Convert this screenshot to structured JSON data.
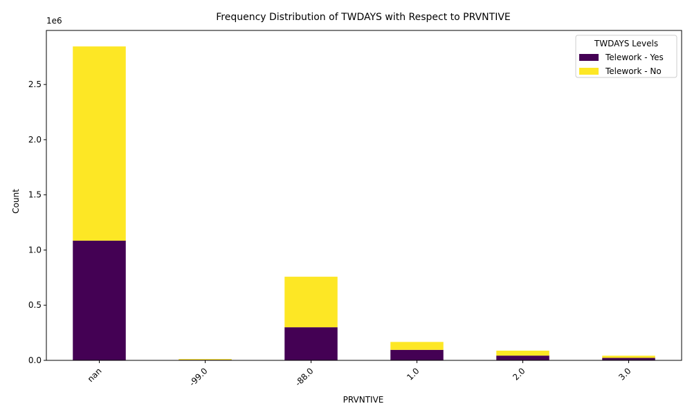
{
  "chart_data": {
    "type": "bar",
    "stacked": true,
    "title": "Frequency Distribution of TWDAYS with Respect to PRVNTIVE",
    "xlabel": "PRVNTIVE",
    "ylabel": "Count",
    "offset_label": "1e6",
    "categories": [
      "nan",
      "-99.0",
      "-88.0",
      "1.0",
      "2.0",
      "3.0"
    ],
    "series": [
      {
        "name": "Telework - Yes",
        "color": "#440154",
        "values": [
          1085000,
          5000,
          300000,
          95000,
          43000,
          22000
        ]
      },
      {
        "name": "Telework - No",
        "color": "#fde725",
        "values": [
          1760000,
          7000,
          458000,
          72000,
          45000,
          20000
        ]
      }
    ],
    "ylim": [
      0,
      2990000
    ],
    "yticks": [
      0,
      500000,
      1000000,
      1500000,
      2000000,
      2500000
    ],
    "ytick_labels": [
      "0.0",
      "0.5",
      "1.0",
      "1.5",
      "2.0",
      "2.5"
    ],
    "legend": {
      "title": "TWDAYS Levels",
      "position": "top-right"
    },
    "grid": false
  }
}
